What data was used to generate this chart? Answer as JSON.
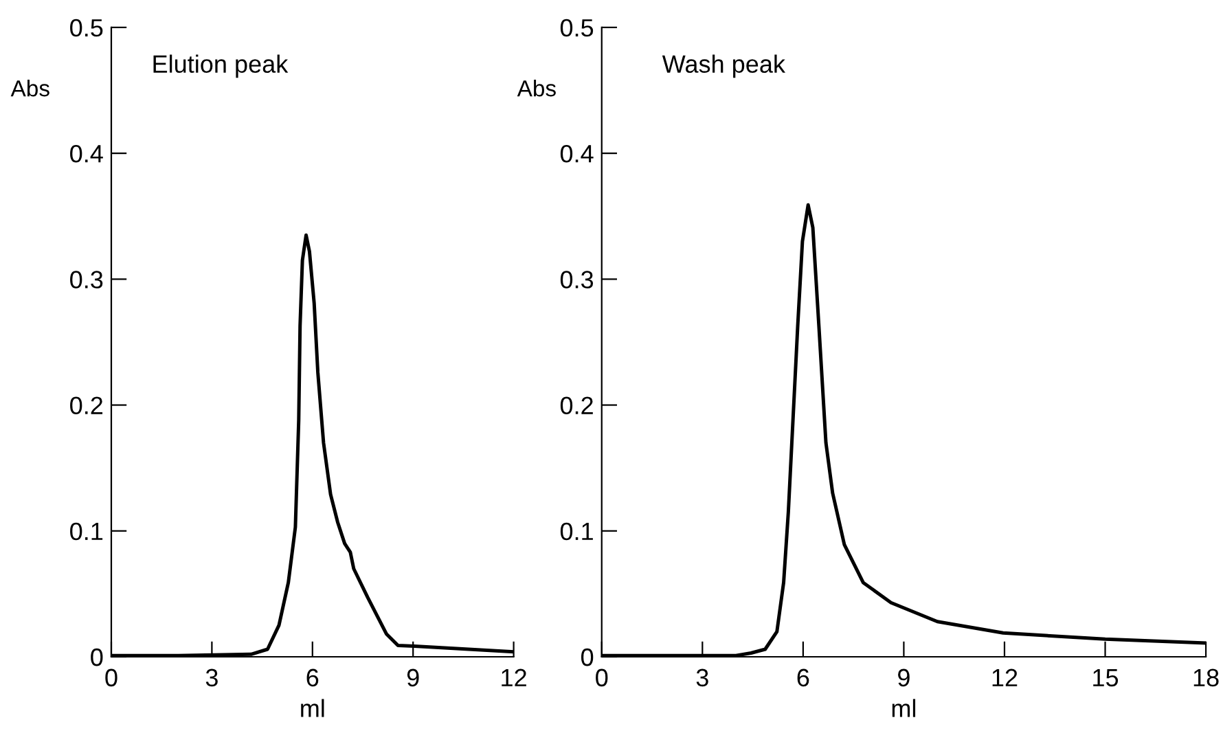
{
  "chart_data": [
    {
      "type": "line",
      "title": "Elution peak",
      "xlabel": "ml",
      "ylabel": "Abs",
      "xlim": [
        0,
        12
      ],
      "xticks": [
        0,
        3,
        6,
        9,
        12
      ],
      "ylim": [
        0,
        0.5
      ],
      "yticks": [
        0,
        0.1,
        0.2,
        0.3,
        0.4,
        0.5
      ],
      "grid": false,
      "legend": false,
      "series": [
        {
          "color": "#000000",
          "x": [
            0,
            2,
            4.17,
            4.66,
            5.0,
            5.28,
            5.49,
            5.59,
            5.63,
            5.7,
            5.81,
            5.91,
            6.05,
            6.16,
            6.33,
            6.54,
            6.75,
            6.96,
            7.13,
            7.23,
            7.65,
            8.21,
            8.55,
            9.04,
            12
          ],
          "values": [
            0.001,
            0.001,
            0.002,
            0.006,
            0.025,
            0.059,
            0.103,
            0.188,
            0.263,
            0.315,
            0.335,
            0.322,
            0.281,
            0.226,
            0.17,
            0.129,
            0.107,
            0.09,
            0.083,
            0.07,
            0.047,
            0.018,
            0.009,
            0.0085,
            0.004
          ]
        }
      ]
    },
    {
      "type": "line",
      "title": "Wash peak",
      "xlabel": "ml",
      "ylabel": "Abs",
      "xlim": [
        0,
        18
      ],
      "xticks": [
        0,
        3,
        6,
        9,
        12,
        15,
        18
      ],
      "ylim": [
        0,
        0.5
      ],
      "yticks": [
        0,
        0.1,
        0.2,
        0.3,
        0.4,
        0.5
      ],
      "grid": false,
      "legend": false,
      "series": [
        {
          "color": "#000000",
          "x": [
            0,
            2,
            4.0,
            4.45,
            4.87,
            5.22,
            5.42,
            5.56,
            5.7,
            5.84,
            5.98,
            6.15,
            6.29,
            6.47,
            6.68,
            6.88,
            7.23,
            7.79,
            8.62,
            10.0,
            11.96,
            15.0,
            18.0
          ],
          "values": [
            0.001,
            0.001,
            0.001,
            0.003,
            0.006,
            0.02,
            0.059,
            0.115,
            0.189,
            0.263,
            0.33,
            0.359,
            0.341,
            0.263,
            0.17,
            0.13,
            0.089,
            0.059,
            0.043,
            0.028,
            0.019,
            0.014,
            0.011
          ]
        }
      ]
    }
  ]
}
